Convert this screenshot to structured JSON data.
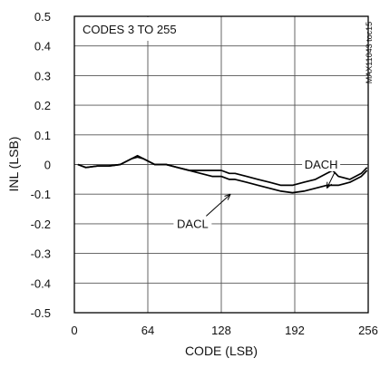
{
  "chart_data": {
    "type": "line",
    "xlabel": "CODE (LSB)",
    "ylabel": "INL (LSB)",
    "xlim": [
      0,
      256
    ],
    "ylim": [
      -0.5,
      0.5
    ],
    "xticks": [
      0,
      64,
      128,
      192,
      256
    ],
    "yticks": [
      0.5,
      0.4,
      0.3,
      0.2,
      0.1,
      0,
      -0.1,
      -0.2,
      -0.3,
      -0.4,
      -0.5
    ],
    "ytick_labels": [
      "0.5",
      "0.4",
      "0.3",
      "0.2",
      "0.1",
      "0",
      "-0.1",
      "-0.2",
      "-0.3",
      "-0.4",
      "-0.5"
    ],
    "grid": true,
    "annotations": {
      "codes_range": "CODES 3 TO 255",
      "figure_id": "MAX11043 toc15"
    },
    "series": [
      {
        "name": "DACH",
        "x": [
          3,
          10,
          20,
          30,
          40,
          50,
          55,
          60,
          70,
          80,
          90,
          100,
          110,
          120,
          128,
          135,
          140,
          150,
          160,
          170,
          180,
          190,
          200,
          210,
          220,
          225,
          230,
          240,
          250,
          255
        ],
        "y": [
          0.0,
          -0.01,
          -0.005,
          -0.005,
          0.0,
          0.02,
          0.03,
          0.02,
          0.0,
          0.0,
          -0.01,
          -0.02,
          -0.02,
          -0.02,
          -0.02,
          -0.03,
          -0.03,
          -0.04,
          -0.05,
          -0.06,
          -0.07,
          -0.07,
          -0.06,
          -0.05,
          -0.03,
          -0.02,
          -0.04,
          -0.05,
          -0.03,
          -0.01
        ]
      },
      {
        "name": "DACL",
        "x": [
          3,
          10,
          20,
          30,
          40,
          50,
          55,
          60,
          70,
          80,
          90,
          100,
          110,
          120,
          128,
          135,
          140,
          150,
          160,
          170,
          180,
          190,
          200,
          210,
          220,
          230,
          240,
          250,
          255
        ],
        "y": [
          0.0,
          -0.01,
          -0.005,
          -0.005,
          0.0,
          0.02,
          0.025,
          0.02,
          0.0,
          0.0,
          -0.01,
          -0.02,
          -0.03,
          -0.04,
          -0.04,
          -0.05,
          -0.05,
          -0.06,
          -0.07,
          -0.08,
          -0.09,
          -0.095,
          -0.09,
          -0.08,
          -0.07,
          -0.07,
          -0.06,
          -0.04,
          -0.02
        ]
      }
    ],
    "labels": [
      {
        "series": "DACH",
        "text": "DACH",
        "at": [
          215,
          0.0
        ],
        "points_to": [
          220,
          -0.08
        ]
      },
      {
        "series": "DACL",
        "text": "DACL",
        "at": [
          103,
          -0.2
        ],
        "points_to": [
          136,
          -0.1
        ]
      }
    ]
  }
}
